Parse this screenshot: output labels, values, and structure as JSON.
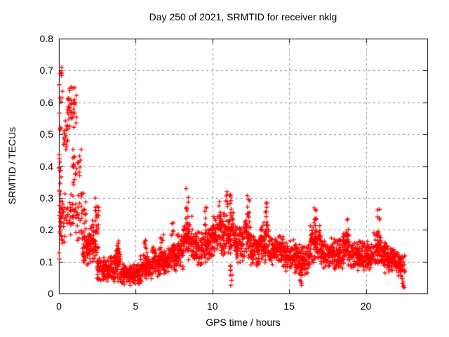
{
  "window": {
    "background": "#ffffff"
  },
  "chart_data": {
    "type": "scatter",
    "title": "Day 250 of 2021, SRMTID for receiver nklg",
    "xlabel": "GPS time / hours",
    "ylabel": "SRMTID / TECUs",
    "xlim": [
      0,
      24
    ],
    "ylim": [
      0,
      0.8
    ],
    "xticks": [
      0,
      5,
      10,
      15,
      20
    ],
    "xtick_labels": [
      "0",
      "5",
      "10",
      "15",
      "20"
    ],
    "yticks": [
      0,
      0.1,
      0.2,
      0.3,
      0.4,
      0.5,
      0.6,
      0.7,
      0.8
    ],
    "ytick_labels": [
      "0",
      "0.1",
      "0.2",
      "0.3",
      "0.4",
      "0.5",
      "0.6",
      "0.7",
      "0.8"
    ],
    "grid": true,
    "grid_style": "dashed",
    "legend": "none",
    "marker": "plus",
    "marker_color": "#ff0000",
    "grid_color": "#8c8c8c",
    "axis_color": "#000000",
    "data_time_span_hours": [
      0,
      22.55
    ],
    "notable_points": {
      "max": {
        "x": 0.05,
        "y": 0.71
      },
      "start_high_cluster": {
        "x_range": [
          0.45,
          1.15
        ],
        "y_range": [
          0.5,
          0.66
        ]
      },
      "early_secondary_bump": {
        "x": 2.5,
        "y_max": 0.3
      },
      "quiet_minimum": {
        "x_range": [
          4.0,
          5.3
        ],
        "y_range": [
          0.025,
          0.095
        ]
      },
      "midday_peaks": [
        {
          "x": 8.35,
          "y_max": 0.33
        },
        {
          "x": 10.9,
          "y_max": 0.325
        },
        {
          "x": 12.3,
          "y_max": 0.315
        },
        {
          "x": 16.65,
          "y_max": 0.285
        },
        {
          "x": 20.8,
          "y_max": 0.265
        }
      ],
      "end_tail": {
        "x": 22.45,
        "y_min": 0.015
      }
    },
    "cluster_format": "[x_start_hours, x_end_hours, y_low_TECUs, y_high_TECUs, point_count, shape(band|col)]",
    "clusters": [
      [
        0.0,
        0.15,
        0.1,
        0.71,
        26,
        "col"
      ],
      [
        0.05,
        0.45,
        0.14,
        0.35,
        30,
        "band"
      ],
      [
        0.05,
        0.25,
        0.55,
        0.71,
        8,
        "col"
      ],
      [
        0.3,
        0.7,
        0.4,
        0.62,
        18,
        "band"
      ],
      [
        0.45,
        1.15,
        0.5,
        0.66,
        38,
        "band"
      ],
      [
        0.45,
        1.25,
        0.16,
        0.32,
        38,
        "band"
      ],
      [
        0.9,
        1.5,
        0.3,
        0.5,
        26,
        "band"
      ],
      [
        1.2,
        1.8,
        0.14,
        0.34,
        30,
        "band"
      ],
      [
        1.5,
        2.1,
        0.07,
        0.2,
        55,
        "band"
      ],
      [
        2.05,
        2.4,
        0.09,
        0.24,
        45,
        "band"
      ],
      [
        2.35,
        2.6,
        0.12,
        0.3,
        28,
        "col"
      ],
      [
        2.45,
        3.6,
        0.035,
        0.125,
        120,
        "band"
      ],
      [
        3.6,
        4.0,
        0.03,
        0.15,
        48,
        "band"
      ],
      [
        3.75,
        3.92,
        0.1,
        0.17,
        9,
        "col"
      ],
      [
        4.0,
        5.3,
        0.025,
        0.095,
        150,
        "band"
      ],
      [
        5.3,
        6.05,
        0.035,
        0.125,
        85,
        "band"
      ],
      [
        5.55,
        5.75,
        0.1,
        0.17,
        9,
        "col"
      ],
      [
        6.05,
        7.0,
        0.05,
        0.15,
        105,
        "band"
      ],
      [
        6.6,
        6.82,
        0.12,
        0.19,
        7,
        "col"
      ],
      [
        7.0,
        7.7,
        0.055,
        0.17,
        78,
        "band"
      ],
      [
        7.3,
        7.52,
        0.13,
        0.245,
        10,
        "col"
      ],
      [
        7.7,
        8.1,
        0.075,
        0.19,
        45,
        "band"
      ],
      [
        8.1,
        8.7,
        0.1,
        0.26,
        66,
        "band"
      ],
      [
        8.25,
        8.48,
        0.17,
        0.33,
        14,
        "col"
      ],
      [
        8.7,
        9.4,
        0.08,
        0.2,
        78,
        "band"
      ],
      [
        9.4,
        10.0,
        0.09,
        0.22,
        66,
        "band"
      ],
      [
        9.5,
        9.66,
        0.16,
        0.27,
        8,
        "col"
      ],
      [
        10.0,
        11.4,
        0.11,
        0.26,
        155,
        "band"
      ],
      [
        10.4,
        10.56,
        0.2,
        0.3,
        8,
        "col"
      ],
      [
        10.8,
        11.0,
        0.2,
        0.325,
        10,
        "col"
      ],
      [
        11.08,
        11.25,
        0.19,
        0.31,
        8,
        "col"
      ],
      [
        11.15,
        11.32,
        0.025,
        0.09,
        8,
        "col"
      ],
      [
        11.4,
        12.1,
        0.09,
        0.23,
        78,
        "band"
      ],
      [
        12.1,
        12.5,
        0.1,
        0.26,
        45,
        "band"
      ],
      [
        12.25,
        12.42,
        0.18,
        0.315,
        8,
        "col"
      ],
      [
        12.5,
        13.1,
        0.08,
        0.2,
        68,
        "band"
      ],
      [
        13.1,
        13.7,
        0.09,
        0.24,
        66,
        "band"
      ],
      [
        13.4,
        13.62,
        0.16,
        0.285,
        10,
        "col"
      ],
      [
        13.7,
        14.6,
        0.08,
        0.19,
        100,
        "band"
      ],
      [
        14.6,
        15.6,
        0.06,
        0.17,
        112,
        "band"
      ],
      [
        15.65,
        15.82,
        0.025,
        0.08,
        8,
        "col"
      ],
      [
        15.6,
        16.35,
        0.05,
        0.16,
        85,
        "band"
      ],
      [
        16.35,
        17.05,
        0.08,
        0.23,
        78,
        "band"
      ],
      [
        16.55,
        16.78,
        0.15,
        0.285,
        12,
        "col"
      ],
      [
        17.05,
        18.5,
        0.07,
        0.18,
        158,
        "band"
      ],
      [
        18.5,
        19.0,
        0.08,
        0.2,
        55,
        "band"
      ],
      [
        18.65,
        18.86,
        0.14,
        0.24,
        7,
        "col"
      ],
      [
        19.0,
        20.5,
        0.065,
        0.17,
        162,
        "band"
      ],
      [
        20.5,
        21.0,
        0.08,
        0.21,
        55,
        "band"
      ],
      [
        20.7,
        20.92,
        0.15,
        0.265,
        9,
        "col"
      ],
      [
        21.0,
        21.9,
        0.06,
        0.165,
        100,
        "band"
      ],
      [
        21.9,
        22.35,
        0.05,
        0.14,
        48,
        "band"
      ],
      [
        22.35,
        22.55,
        0.015,
        0.12,
        20,
        "col"
      ]
    ]
  }
}
